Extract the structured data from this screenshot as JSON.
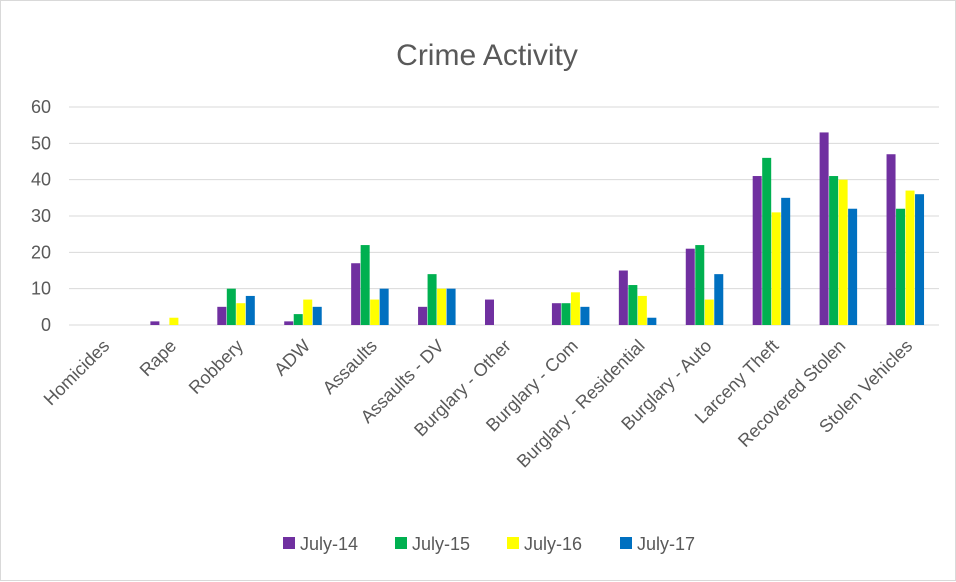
{
  "chart_data": {
    "type": "bar",
    "title": "Crime Activity",
    "xlabel": "",
    "ylabel": "",
    "ylim": [
      0,
      60
    ],
    "yticks": [
      0,
      10,
      20,
      30,
      40,
      50,
      60
    ],
    "grid": true,
    "legend_position": "bottom",
    "categories": [
      "Homicides",
      "Rape",
      "Robbery",
      "ADW",
      "Assaults",
      "Assaults - DV",
      "Burglary - Other",
      "Burglary - Com",
      "Burglary - Residential",
      "Burglary - Auto",
      "Larceny Theft",
      "Recovered Stolen",
      "Stolen Vehicles"
    ],
    "series": [
      {
        "name": "July-14",
        "color": "#7030a0",
        "values": [
          0,
          1,
          5,
          1,
          17,
          5,
          7,
          6,
          15,
          21,
          41,
          53,
          47
        ]
      },
      {
        "name": "July-15",
        "color": "#00b050",
        "values": [
          0,
          0,
          10,
          3,
          22,
          14,
          0,
          6,
          11,
          22,
          46,
          41,
          32
        ]
      },
      {
        "name": "July-16",
        "color": "#ffff00",
        "values": [
          0,
          2,
          6,
          7,
          7,
          10,
          0,
          9,
          8,
          7,
          31,
          40,
          37
        ]
      },
      {
        "name": "July-17",
        "color": "#0070c0",
        "values": [
          0,
          0,
          8,
          5,
          10,
          10,
          0,
          5,
          2,
          14,
          35,
          32,
          36
        ]
      }
    ]
  }
}
